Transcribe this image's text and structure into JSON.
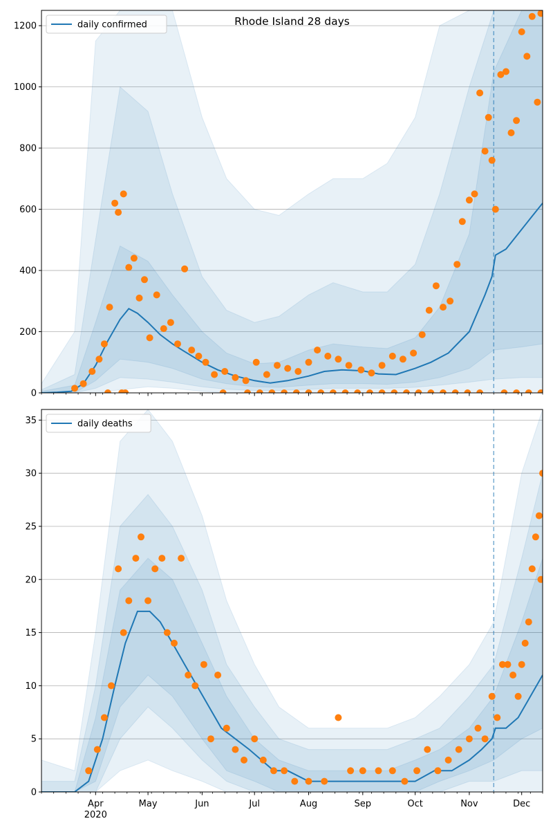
{
  "colors": {
    "line": "#1f77b4",
    "points": "#ff7f0e",
    "band": "#1f77b4",
    "grid": "#b0b0b0",
    "axis": "#000000"
  },
  "chart_data": [
    {
      "type": "line",
      "title": "Rhode Island 28 days",
      "legend": {
        "entries": [
          "daily confirmed"
        ],
        "placement": "top-left"
      },
      "grid": {
        "y": true,
        "x": false
      },
      "ylim": [
        0,
        1250
      ],
      "yticks": [
        0,
        200,
        400,
        600,
        800,
        1000,
        1200
      ],
      "xticks": [
        "Apr\n2020",
        "May",
        "Jun",
        "Jul",
        "Aug",
        "Sep",
        "Oct",
        "Nov",
        "Dec"
      ],
      "x_range": [
        "2020-03-01",
        "2020-12-13"
      ],
      "forecast_start": "2020-11-15",
      "series": [
        {
          "name": "daily confirmed",
          "style": "line",
          "x": [
            "2020-03-01",
            "2020-03-10",
            "2020-03-18",
            "2020-03-25",
            "2020-04-01",
            "2020-04-08",
            "2020-04-15",
            "2020-04-20",
            "2020-04-25",
            "2020-05-01",
            "2020-05-08",
            "2020-05-15",
            "2020-05-22",
            "2020-06-01",
            "2020-06-10",
            "2020-06-20",
            "2020-07-01",
            "2020-07-10",
            "2020-07-20",
            "2020-08-01",
            "2020-08-10",
            "2020-08-20",
            "2020-09-01",
            "2020-09-10",
            "2020-09-20",
            "2020-10-01",
            "2020-10-10",
            "2020-10-20",
            "2020-11-01",
            "2020-11-10",
            "2020-11-14",
            "2020-11-16",
            "2020-11-22",
            "2020-11-29",
            "2020-12-06",
            "2020-12-13"
          ],
          "y": [
            0,
            2,
            5,
            30,
            90,
            170,
            240,
            275,
            260,
            230,
            190,
            160,
            135,
            100,
            75,
            55,
            40,
            32,
            40,
            55,
            70,
            75,
            72,
            62,
            60,
            80,
            100,
            130,
            200,
            320,
            380,
            450,
            470,
            520,
            570,
            620
          ]
        },
        {
          "name": "reported",
          "style": "points",
          "x": [
            "2020-03-20",
            "2020-03-25",
            "2020-03-30",
            "2020-04-03",
            "2020-04-06",
            "2020-04-09",
            "2020-04-12",
            "2020-04-14",
            "2020-04-17",
            "2020-04-20",
            "2020-04-23",
            "2020-04-26",
            "2020-04-29",
            "2020-05-02",
            "2020-05-06",
            "2020-05-10",
            "2020-05-14",
            "2020-05-18",
            "2020-05-22",
            "2020-05-26",
            "2020-05-30",
            "2020-06-03",
            "2020-06-08",
            "2020-06-14",
            "2020-06-20",
            "2020-06-26",
            "2020-07-02",
            "2020-07-08",
            "2020-07-14",
            "2020-07-20",
            "2020-07-26",
            "2020-08-01",
            "2020-08-06",
            "2020-08-12",
            "2020-08-18",
            "2020-08-24",
            "2020-08-31",
            "2020-09-06",
            "2020-09-12",
            "2020-09-18",
            "2020-09-24",
            "2020-09-30",
            "2020-10-05",
            "2020-10-09",
            "2020-10-13",
            "2020-10-17",
            "2020-10-21",
            "2020-10-25",
            "2020-10-28",
            "2020-11-01",
            "2020-11-04",
            "2020-11-07",
            "2020-11-10",
            "2020-11-12",
            "2020-11-14",
            "2020-11-16",
            "2020-11-19",
            "2020-11-22",
            "2020-11-25",
            "2020-11-28",
            "2020-12-01",
            "2020-12-04",
            "2020-12-07",
            "2020-12-10",
            "2020-12-12"
          ],
          "y": [
            15,
            30,
            70,
            110,
            160,
            280,
            620,
            590,
            650,
            410,
            440,
            310,
            370,
            180,
            320,
            210,
            230,
            160,
            405,
            140,
            120,
            100,
            60,
            70,
            50,
            40,
            100,
            60,
            90,
            80,
            70,
            100,
            140,
            120,
            110,
            90,
            75,
            65,
            90,
            120,
            110,
            130,
            190,
            270,
            350,
            280,
            300,
            420,
            560,
            630,
            650,
            980,
            790,
            900,
            760,
            600,
            1040,
            1050,
            850,
            890,
            1180,
            1100,
            1230,
            950,
            1240
          ]
        },
        {
          "name": "reported-zero",
          "style": "points",
          "x": [
            "2020-04-08",
            "2020-04-16",
            "2020-04-18",
            "2020-06-13",
            "2020-06-27",
            "2020-07-04",
            "2020-07-11",
            "2020-07-18",
            "2020-07-25",
            "2020-08-01",
            "2020-08-08",
            "2020-08-15",
            "2020-08-22",
            "2020-08-29",
            "2020-09-05",
            "2020-09-12",
            "2020-09-19",
            "2020-09-26",
            "2020-10-03",
            "2020-10-10",
            "2020-10-17",
            "2020-10-24",
            "2020-10-31",
            "2020-11-07",
            "2020-11-21",
            "2020-11-28",
            "2020-12-05",
            "2020-12-12"
          ],
          "y": [
            0,
            0,
            0,
            0,
            0,
            0,
            0,
            0,
            0,
            0,
            0,
            0,
            0,
            0,
            0,
            0,
            0,
            0,
            0,
            0,
            0,
            0,
            0,
            0,
            0,
            0,
            0,
            0
          ]
        }
      ],
      "bands": [
        {
          "x": [
            "2020-03-01",
            "2020-03-20",
            "2020-04-01",
            "2020-04-15",
            "2020-05-01",
            "2020-05-15",
            "2020-06-01",
            "2020-06-15",
            "2020-07-01",
            "2020-07-15",
            "2020-08-01",
            "2020-08-15",
            "2020-09-01",
            "2020-09-15",
            "2020-10-01",
            "2020-10-15",
            "2020-11-01",
            "2020-11-15",
            "2020-12-01",
            "2020-12-13"
          ],
          "lower": [
            0,
            0,
            0,
            10,
            20,
            15,
            5,
            0,
            0,
            0,
            0,
            0,
            0,
            0,
            0,
            0,
            0,
            0,
            0,
            0
          ],
          "upper": [
            30,
            200,
            1150,
            1250,
            1250,
            1250,
            900,
            700,
            600,
            580,
            650,
            700,
            700,
            750,
            900,
            1200,
            1250,
            1250,
            1250,
            1250
          ]
        },
        {
          "x": [
            "2020-03-01",
            "2020-03-20",
            "2020-04-01",
            "2020-04-15",
            "2020-05-01",
            "2020-05-15",
            "2020-06-01",
            "2020-06-15",
            "2020-07-01",
            "2020-07-15",
            "2020-08-01",
            "2020-08-15",
            "2020-09-01",
            "2020-09-15",
            "2020-10-01",
            "2020-10-15",
            "2020-11-01",
            "2020-11-15",
            "2020-12-01",
            "2020-12-13"
          ],
          "lower": [
            0,
            0,
            15,
            50,
            45,
            35,
            20,
            12,
            8,
            8,
            12,
            15,
            15,
            15,
            18,
            25,
            35,
            45,
            50,
            50
          ],
          "upper": [
            10,
            60,
            500,
            1000,
            920,
            650,
            380,
            270,
            230,
            250,
            320,
            360,
            330,
            330,
            420,
            650,
            1000,
            1250,
            1250,
            1250
          ]
        },
        {
          "x": [
            "2020-03-01",
            "2020-03-20",
            "2020-04-01",
            "2020-04-15",
            "2020-05-01",
            "2020-05-15",
            "2020-06-01",
            "2020-06-15",
            "2020-07-01",
            "2020-07-15",
            "2020-08-01",
            "2020-08-15",
            "2020-09-01",
            "2020-09-15",
            "2020-10-01",
            "2020-10-15",
            "2020-11-01",
            "2020-11-15",
            "2020-12-01",
            "2020-12-13"
          ],
          "lower": [
            0,
            0,
            40,
            110,
            100,
            80,
            45,
            30,
            20,
            18,
            25,
            30,
            30,
            28,
            35,
            50,
            80,
            140,
            150,
            160
          ],
          "upper": [
            5,
            25,
            230,
            480,
            430,
            320,
            200,
            130,
            95,
            100,
            140,
            160,
            150,
            145,
            180,
            280,
            520,
            1050,
            1250,
            1250
          ]
        }
      ]
    },
    {
      "type": "line",
      "title": "",
      "legend": {
        "entries": [
          "daily deaths"
        ],
        "placement": "top-left"
      },
      "grid": {
        "y": true,
        "x": false
      },
      "ylim": [
        0,
        36
      ],
      "yticks": [
        0,
        5,
        10,
        15,
        20,
        25,
        30,
        35
      ],
      "xticks": [
        "Apr\n2020",
        "May",
        "Jun",
        "Jul",
        "Aug",
        "Sep",
        "Oct",
        "Nov",
        "Dec"
      ],
      "x_range": [
        "2020-03-01",
        "2020-12-13"
      ],
      "forecast_start": "2020-11-15",
      "series": [
        {
          "name": "daily deaths",
          "style": "line",
          "x": [
            "2020-03-01",
            "2020-03-20",
            "2020-03-28",
            "2020-04-05",
            "2020-04-12",
            "2020-04-18",
            "2020-04-25",
            "2020-05-02",
            "2020-05-08",
            "2020-05-15",
            "2020-05-22",
            "2020-05-29",
            "2020-06-05",
            "2020-06-12",
            "2020-06-20",
            "2020-06-28",
            "2020-07-05",
            "2020-07-12",
            "2020-07-20",
            "2020-08-01",
            "2020-08-15",
            "2020-09-01",
            "2020-09-15",
            "2020-10-01",
            "2020-10-12",
            "2020-10-22",
            "2020-11-01",
            "2020-11-08",
            "2020-11-14",
            "2020-11-16",
            "2020-11-22",
            "2020-11-29",
            "2020-12-06",
            "2020-12-13"
          ],
          "y": [
            0,
            0,
            1,
            5,
            10,
            14,
            17,
            17,
            16,
            14,
            12,
            10,
            8,
            6,
            5,
            4,
            3,
            2,
            2,
            1,
            1,
            1,
            1,
            1,
            2,
            2,
            3,
            4,
            5,
            6,
            6,
            7,
            9,
            11
          ]
        },
        {
          "name": "reported",
          "style": "points",
          "x": [
            "2020-03-28",
            "2020-04-02",
            "2020-04-06",
            "2020-04-10",
            "2020-04-14",
            "2020-04-17",
            "2020-04-20",
            "2020-04-24",
            "2020-04-27",
            "2020-05-01",
            "2020-05-05",
            "2020-05-09",
            "2020-05-12",
            "2020-05-16",
            "2020-05-20",
            "2020-05-24",
            "2020-05-28",
            "2020-06-02",
            "2020-06-06",
            "2020-06-10",
            "2020-06-15",
            "2020-06-20",
            "2020-06-25",
            "2020-07-01",
            "2020-07-06",
            "2020-07-12",
            "2020-07-18",
            "2020-07-24",
            "2020-08-01",
            "2020-08-10",
            "2020-08-18",
            "2020-08-25",
            "2020-09-01",
            "2020-09-10",
            "2020-09-18",
            "2020-09-25",
            "2020-10-02",
            "2020-10-08",
            "2020-10-14",
            "2020-10-20",
            "2020-10-26",
            "2020-11-01",
            "2020-11-06",
            "2020-11-10",
            "2020-11-14",
            "2020-11-17",
            "2020-11-20",
            "2020-11-23",
            "2020-11-26",
            "2020-11-29",
            "2020-12-01",
            "2020-12-03",
            "2020-12-05",
            "2020-12-07",
            "2020-12-09",
            "2020-12-11",
            "2020-12-12",
            "2020-12-13"
          ],
          "y": [
            2,
            4,
            7,
            10,
            21,
            15,
            18,
            22,
            24,
            18,
            21,
            22,
            15,
            14,
            22,
            11,
            10,
            12,
            5,
            11,
            6,
            4,
            3,
            5,
            3,
            2,
            2,
            1,
            1,
            1,
            7,
            2,
            2,
            2,
            2,
            1,
            2,
            4,
            2,
            3,
            4,
            5,
            6,
            5,
            9,
            7,
            12,
            12,
            11,
            9,
            12,
            14,
            16,
            21,
            24,
            26,
            20,
            30
          ]
        }
      ],
      "bands": [
        {
          "x": [
            "2020-03-01",
            "2020-03-20",
            "2020-04-01",
            "2020-04-15",
            "2020-05-01",
            "2020-05-15",
            "2020-06-01",
            "2020-06-15",
            "2020-07-01",
            "2020-07-15",
            "2020-08-01",
            "2020-08-15",
            "2020-09-01",
            "2020-09-15",
            "2020-10-01",
            "2020-10-15",
            "2020-11-01",
            "2020-11-15",
            "2020-12-01",
            "2020-12-13"
          ],
          "lower": [
            0,
            0,
            0,
            2,
            3,
            2,
            1,
            0,
            0,
            0,
            0,
            0,
            0,
            0,
            0,
            0,
            0,
            0,
            0,
            0
          ],
          "upper": [
            3,
            2,
            15,
            33,
            36,
            33,
            26,
            18,
            12,
            8,
            6,
            6,
            6,
            6,
            7,
            9,
            12,
            16,
            30,
            36
          ]
        },
        {
          "x": [
            "2020-03-01",
            "2020-03-20",
            "2020-04-01",
            "2020-04-15",
            "2020-05-01",
            "2020-05-15",
            "2020-06-01",
            "2020-06-15",
            "2020-07-01",
            "2020-07-15",
            "2020-08-01",
            "2020-08-15",
            "2020-09-01",
            "2020-09-15",
            "2020-10-01",
            "2020-10-15",
            "2020-11-01",
            "2020-11-15",
            "2020-12-01",
            "2020-12-13"
          ],
          "lower": [
            0,
            0,
            0,
            5,
            8,
            6,
            3,
            1,
            0,
            0,
            0,
            0,
            0,
            0,
            0,
            0,
            1,
            1,
            2,
            2
          ],
          "upper": [
            1,
            1,
            10,
            25,
            28,
            25,
            19,
            12,
            8,
            5,
            4,
            4,
            4,
            4,
            5,
            6,
            9,
            12,
            22,
            30
          ]
        },
        {
          "x": [
            "2020-03-01",
            "2020-03-20",
            "2020-04-01",
            "2020-04-15",
            "2020-05-01",
            "2020-05-15",
            "2020-06-01",
            "2020-06-15",
            "2020-07-01",
            "2020-07-15",
            "2020-08-01",
            "2020-08-15",
            "2020-09-01",
            "2020-09-15",
            "2020-10-01",
            "2020-10-15",
            "2020-11-01",
            "2020-11-15",
            "2020-12-01",
            "2020-12-13"
          ],
          "lower": [
            0,
            0,
            1,
            8,
            11,
            9,
            5,
            2,
            1,
            0,
            0,
            0,
            0,
            0,
            0,
            1,
            2,
            3,
            5,
            6
          ],
          "upper": [
            0,
            0,
            7,
            19,
            22,
            20,
            14,
            9,
            5,
            3,
            2,
            2,
            2,
            2,
            3,
            4,
            6,
            9,
            16,
            22
          ]
        }
      ]
    }
  ]
}
